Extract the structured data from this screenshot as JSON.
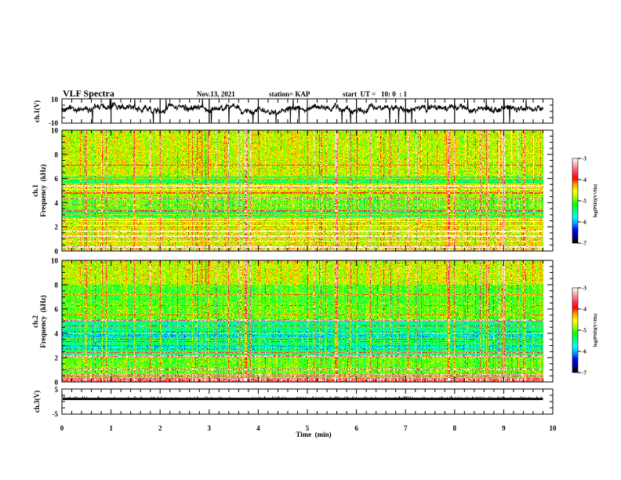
{
  "header": {
    "title": "VLF Spectra",
    "date": "Nov.13, 2021",
    "station": "station= KAP",
    "start": "start  UT =   10: 0  : 1"
  },
  "colors": {
    "colormap": [
      "#000000",
      "#00008a",
      "#0000ff",
      "#00a0ff",
      "#00ffff",
      "#00ff80",
      "#00ff00",
      "#a0ff00",
      "#ffff00",
      "#ffa000",
      "#ff0000",
      "#ff4060",
      "#ffa0b0",
      "#ffffff"
    ],
    "trace": "#000000",
    "frame": "#000000"
  },
  "chart_data": [
    {
      "type": "line",
      "name": "ch1-waveform",
      "ylabel": "ch.1(V)",
      "ylim": [
        -10,
        10
      ],
      "yticks": [
        "10",
        "-10"
      ],
      "xlim": [
        0,
        10
      ],
      "data_end_min": 9.8,
      "description_values": {
        "mean_v": 2,
        "typical_range_v": [
          -6,
          7
        ]
      }
    },
    {
      "type": "heatmap",
      "name": "ch1-spectrogram",
      "ylabel_line1": "ch.1",
      "ylabel_line2": "Frequency  (kHz)",
      "ylim": [
        0,
        10
      ],
      "yticks": [
        "0",
        "2",
        "4",
        "6",
        "8",
        "10"
      ],
      "xlim": [
        0,
        10
      ],
      "data_end_min": 9.8,
      "colorbar": {
        "label": "log(PSD)(V²/Hz)",
        "range": [
          -7,
          -3
        ],
        "ticks": [
          "-3",
          "-4",
          "-5",
          "-6",
          "-7"
        ]
      },
      "strong_bands_khz": [
        0.3,
        0.8,
        1.2,
        1.6,
        2.1,
        2.4,
        2.6,
        3.3,
        3.8,
        4.3,
        5.1,
        5.4
      ],
      "weak_bands_khz": [
        3.0,
        4.8,
        6.0,
        7.1
      ]
    },
    {
      "type": "heatmap",
      "name": "ch2-spectrogram",
      "ylabel_line1": "ch.2",
      "ylabel_line2": "Frequency  (kHz)",
      "ylim": [
        0,
        10
      ],
      "yticks": [
        "0",
        "2",
        "4",
        "6",
        "8",
        "10"
      ],
      "xlim": [
        0,
        10
      ],
      "data_end_min": 9.8,
      "colorbar": {
        "label": "log(PSD)(V²/Hz)",
        "range": [
          -7,
          -3
        ],
        "ticks": [
          "-3",
          "-4",
          "-5",
          "-6",
          "-7"
        ]
      },
      "strong_bands_khz": [
        0.2,
        0.6,
        1.0,
        2.1,
        2.4,
        3.3,
        3.5,
        4.6,
        5.1
      ],
      "weak_bands_khz": [
        2.8,
        4.0,
        5.5,
        6.3,
        7.2
      ]
    },
    {
      "type": "line",
      "name": "ch3-waveform",
      "ylabel": "ch.3(V)",
      "ylim": [
        -5,
        5
      ],
      "yticks": [
        "5",
        "-5"
      ],
      "xlim": [
        0,
        10
      ],
      "data_end_min": 9.8,
      "band_v": [
        0.6,
        1.5
      ]
    }
  ],
  "xaxis": {
    "label": "Time  (min)",
    "ticks": [
      "0",
      "1",
      "2",
      "3",
      "4",
      "5",
      "6",
      "7",
      "8",
      "9",
      "10"
    ]
  }
}
